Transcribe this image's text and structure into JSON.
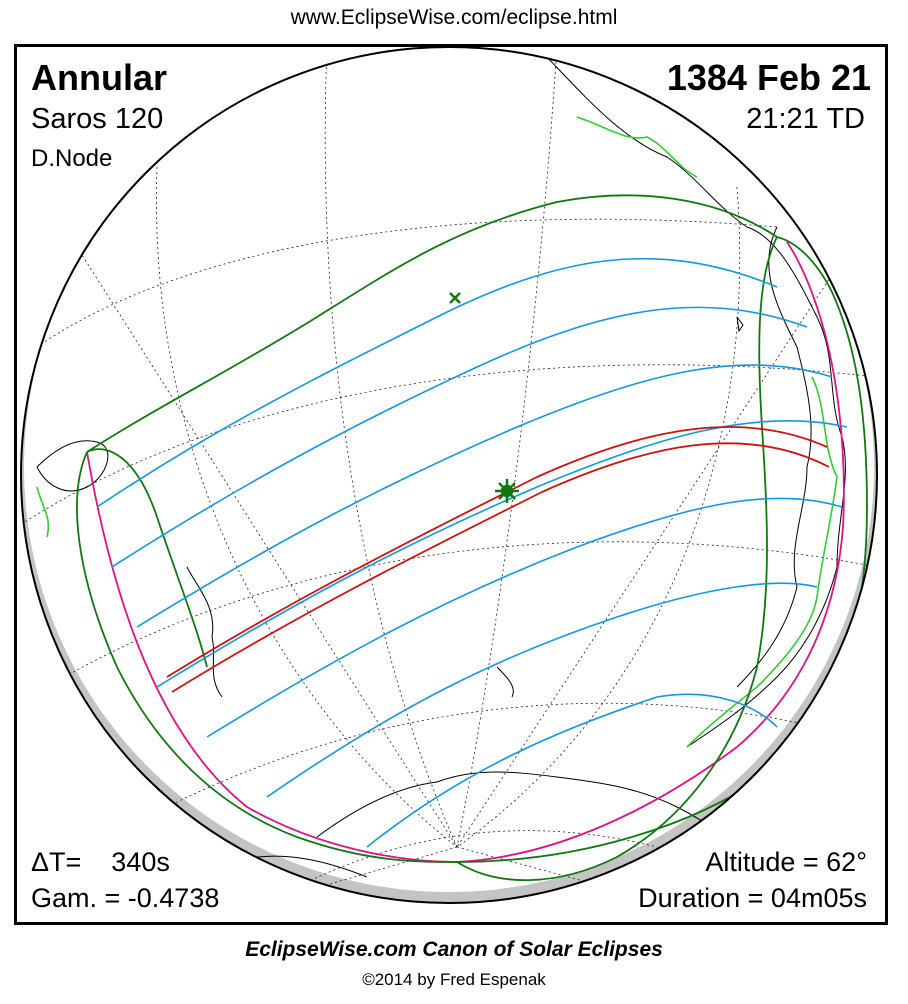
{
  "header": {
    "url": "www.EclipseWise.com/eclipse.html"
  },
  "eclipse": {
    "type": "Annular",
    "date": "1384 Feb 21",
    "saros": "Saros 120",
    "time": "21:21 TD",
    "node": "D.Node",
    "delta_t": "ΔT=    340s",
    "gamma": "Gam. = -0.4738",
    "altitude": "Altitude = 62°",
    "duration": "Duration = 04m05s"
  },
  "footer": {
    "title": "EclipseWise.com Canon of Solar Eclipses",
    "copyright": "©2014 by Fred Espenak"
  },
  "colors": {
    "central_path": "#cc1111",
    "penumbral_limits": "#117711",
    "magnitude_curves": "#1199dd",
    "sunrise_sunset": "#dd1188",
    "coastline_highlight": "#33cc33",
    "night_shading": "#c4c4c4"
  },
  "markers": {
    "greatest_eclipse": "star-icon",
    "subsolar_point": "cross-icon"
  }
}
